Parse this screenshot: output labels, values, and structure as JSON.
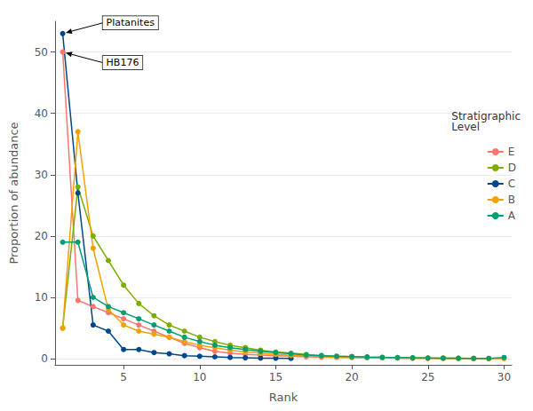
{
  "chart_data": {
    "type": "line",
    "xlabel": "Rank",
    "ylabel": "Proportion of abundance",
    "legend_title": "Stratigraphic\nLevel",
    "legend": "right",
    "grid": true,
    "marker": "circle",
    "series": [
      {
        "name": "E",
        "color": "#F8766D",
        "x": [
          1,
          2,
          3,
          4,
          5,
          6,
          7,
          8,
          9,
          10,
          11,
          12,
          13,
          14,
          15,
          16,
          17,
          18,
          19,
          20,
          21,
          22,
          23,
          24,
          25,
          26,
          27,
          28,
          29
        ],
        "values": [
          50,
          9.5,
          8.5,
          7.5,
          6.5,
          5.5,
          4.5,
          3.5,
          2.5,
          1.8,
          1.2,
          0.9,
          0.7,
          0.6,
          0.5,
          0.4,
          0.3,
          0.25,
          0.2,
          0.18,
          0.15,
          0.12,
          0.1,
          0.08,
          0.07,
          0.06,
          0.05,
          0.04,
          0.03
        ]
      },
      {
        "name": "D",
        "color": "#7CAE00",
        "x": [
          1,
          2,
          3,
          4,
          5,
          6,
          7,
          8,
          9,
          10,
          11,
          12,
          13,
          14,
          15,
          16,
          17,
          18,
          19,
          20,
          21,
          22,
          23,
          24,
          25,
          26,
          27,
          28,
          29
        ],
        "values": [
          5,
          28,
          20,
          16,
          12,
          9,
          7,
          5.5,
          4.5,
          3.5,
          2.8,
          2.2,
          1.8,
          1.4,
          1.1,
          0.9,
          0.7,
          0.5,
          0.4,
          0.35,
          0.28,
          0.22,
          0.18,
          0.14,
          0.11,
          0.09,
          0.07,
          0.05,
          0.04
        ]
      },
      {
        "name": "C",
        "color": "#00468B",
        "x": [
          1,
          2,
          3,
          4,
          5,
          6,
          7,
          8,
          9,
          10,
          11,
          12,
          13,
          14,
          15,
          16
        ],
        "values": [
          53,
          27,
          5.5,
          4.5,
          1.5,
          1.5,
          1.0,
          0.8,
          0.5,
          0.4,
          0.3,
          0.2,
          0.15,
          0.1,
          0.08,
          0.06
        ]
      },
      {
        "name": "B",
        "color": "#F2A200",
        "x": [
          1,
          2,
          3,
          4,
          5,
          6,
          7,
          8,
          9,
          10,
          11,
          12,
          13,
          14,
          15,
          16,
          17,
          18,
          19,
          20,
          21,
          22,
          23,
          24,
          25,
          26,
          27,
          28,
          29,
          30
        ],
        "values": [
          5,
          37,
          18,
          8,
          5.5,
          4.5,
          4.0,
          3.5,
          2.8,
          2.2,
          1.8,
          1.4,
          1.1,
          0.9,
          0.7,
          0.55,
          0.45,
          0.35,
          0.28,
          0.22,
          0.18,
          0.14,
          0.11,
          0.09,
          0.07,
          0.06,
          0.05,
          0.04,
          0.03,
          0.03
        ]
      },
      {
        "name": "A",
        "color": "#009E73",
        "x": [
          1,
          2,
          3,
          4,
          5,
          6,
          7,
          8,
          9,
          10,
          11,
          12,
          13,
          14,
          15,
          16,
          17,
          18,
          19,
          20,
          21,
          22,
          23,
          24,
          25,
          26,
          27,
          28,
          29,
          30
        ],
        "values": [
          19,
          19,
          10,
          8.5,
          7.5,
          6.5,
          5.5,
          4.5,
          3.5,
          2.8,
          2.2,
          1.8,
          1.5,
          1.2,
          1.0,
          0.8,
          0.6,
          0.5,
          0.4,
          0.35,
          0.28,
          0.22,
          0.18,
          0.14,
          0.11,
          0.09,
          0.07,
          0.06,
          0.05,
          0.2
        ]
      }
    ],
    "annotations": [
      {
        "text": "Platanites",
        "x": 1,
        "y": 53
      },
      {
        "text": "HB176",
        "x": 1,
        "y": 50
      }
    ],
    "xlim": [
      0.5,
      30.5
    ],
    "xticks": [
      5,
      10,
      15,
      20,
      25,
      30
    ],
    "ylim": [
      -1,
      55
    ],
    "yticks": [
      0,
      10,
      20,
      30,
      40,
      50
    ]
  }
}
